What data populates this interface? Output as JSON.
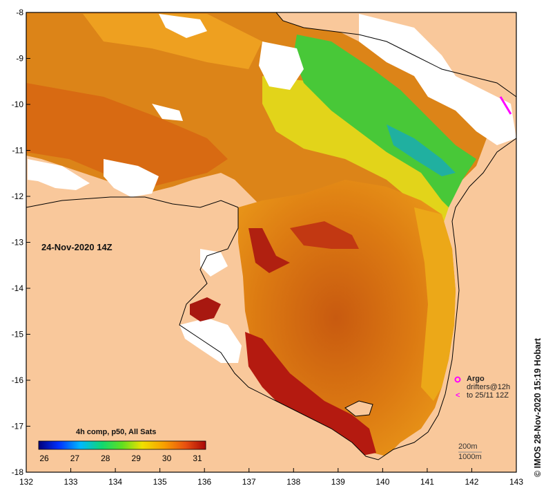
{
  "map": {
    "timestamp": "24-Nov-2020 14Z",
    "credit": "© IMOS 28-Nov-2020 15:19 Hobart",
    "x_ticks": [
      "132",
      "133",
      "134",
      "135",
      "136",
      "137",
      "138",
      "139",
      "140",
      "141",
      "142",
      "143"
    ],
    "y_ticks": [
      "-8",
      "-9",
      "-10",
      "-11",
      "-12",
      "-13",
      "-14",
      "-15",
      "-16",
      "-17",
      "-18"
    ],
    "colors": {
      "land": "#f9c89b",
      "sea_warm": "#e07a10",
      "sea_hot": "#b01a10",
      "sea_green": "#3ec43a",
      "sea_yellow": "#e8d818",
      "no_data": "#ffffff",
      "frame": "#000000",
      "argo": "#ff00ff"
    }
  },
  "colorbar": {
    "title": "4h comp, p50, All Sats",
    "ticks": [
      "26",
      "27",
      "28",
      "29",
      "30",
      "31"
    ]
  },
  "legend": {
    "argo_label": "Argo",
    "drifters_label": "drifters@12h",
    "drifters_arrow": "<",
    "drifters_date": "to 25/11 12Z"
  },
  "scale": {
    "depth1": "200m",
    "depth2": "1000m"
  }
}
